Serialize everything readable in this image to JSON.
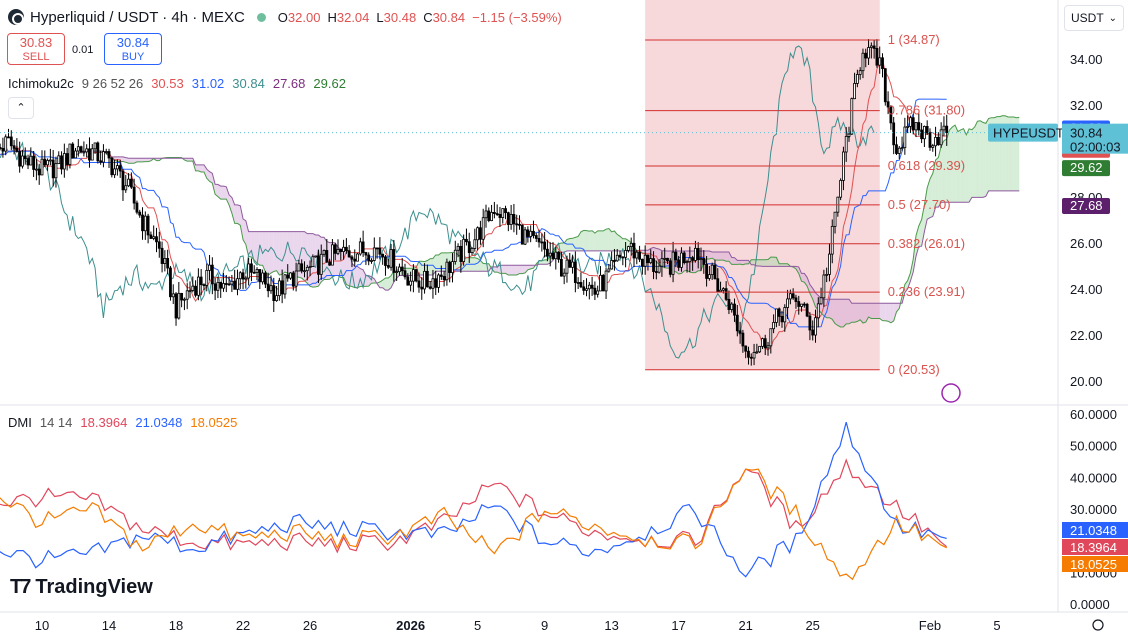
{
  "header": {
    "symbol": "Hyperliquid / USDT · 4h · MEXC",
    "ohlc": [
      {
        "k": "O",
        "v": "32.00"
      },
      {
        "k": "H",
        "v": "32.04"
      },
      {
        "k": "L",
        "v": "30.48"
      },
      {
        "k": "C",
        "v": "30.84"
      },
      {
        "k": "",
        "v": "−1.15 (−3.59%)"
      }
    ]
  },
  "trade": {
    "sell_price": "30.83",
    "sell_label": "SELL",
    "spread": "0.01",
    "buy_price": "30.84",
    "buy_label": "BUY"
  },
  "currency_selector": "USDT",
  "ichimoku_legend": {
    "name": "Ichimoku2c",
    "params": "9 26 52 26",
    "values": [
      "30.53",
      "31.02",
      "30.84",
      "27.68",
      "29.62"
    ],
    "colors": [
      "#e05252",
      "#2962ff",
      "#3d8f8f",
      "#7b2f7f",
      "#2e7d32"
    ]
  },
  "dmi_legend": {
    "name": "DMI",
    "params": "14 14",
    "values": [
      "18.3964",
      "21.0348",
      "18.0525"
    ],
    "colors": [
      "#e0475b",
      "#2962ff",
      "#f57c00"
    ]
  },
  "watermark": "TradingView",
  "colors": {
    "up": "#ffffff",
    "down": "#000000",
    "candle_border": "#000000",
    "tenkan": "#e05252",
    "kijun": "#2962ff",
    "chikou": "#3d8f8f",
    "span_a": "#4a9a4a",
    "span_b": "#8e5a9e",
    "fib_line": "#d32f2f",
    "fib_zone": "#f4c7cc",
    "last_price_label": "#5ec1d6"
  },
  "chart_data": [
    {
      "type": "candlestick",
      "title": "Hyperliquid / USDT · 4h · MEXC",
      "ylim": [
        19.5,
        35.5
      ],
      "y_ticks": [
        "34.00",
        "32.00",
        "28.00",
        "26.00",
        "24.00",
        "22.00",
        "20.00"
      ],
      "x_ticks": [
        "10",
        "14",
        "18",
        "22",
        "26",
        "2026",
        "5",
        "9",
        "13",
        "17",
        "21",
        "25",
        "Feb",
        "5"
      ],
      "x_tick_dates": [
        "2025-12-10",
        "2025-12-14",
        "2025-12-18",
        "2025-12-22",
        "2025-12-26",
        "2026-01-01",
        "2026-01-05",
        "2026-01-09",
        "2026-01-13",
        "2026-01-17",
        "2026-01-21",
        "2026-01-25",
        "2026-02-01",
        "2026-02-05"
      ],
      "series": {
        "close_path_dates": [
          "2025-12-07",
          "2025-12-08",
          "2025-12-09",
          "2025-12-10",
          "2025-12-11",
          "2025-12-12",
          "2025-12-13",
          "2025-12-14",
          "2025-12-15",
          "2025-12-16",
          "2025-12-17",
          "2025-12-18",
          "2025-12-19",
          "2025-12-20",
          "2025-12-21",
          "2025-12-22",
          "2025-12-23",
          "2025-12-24",
          "2025-12-25",
          "2025-12-26",
          "2025-12-27",
          "2025-12-28",
          "2025-12-29",
          "2025-12-30",
          "2025-12-31",
          "2026-01-01",
          "2026-01-02",
          "2026-01-03",
          "2026-01-04",
          "2026-01-05",
          "2026-01-06",
          "2026-01-07",
          "2026-01-08",
          "2026-01-09",
          "2026-01-10",
          "2026-01-11",
          "2026-01-12",
          "2026-01-13",
          "2026-01-14",
          "2026-01-15",
          "2026-01-16",
          "2026-01-17",
          "2026-01-18",
          "2026-01-19",
          "2026-01-20",
          "2026-01-21",
          "2026-01-22",
          "2026-01-23",
          "2026-01-24",
          "2026-01-25",
          "2026-01-26",
          "2026-01-27",
          "2026-01-28",
          "2026-01-29",
          "2026-01-30",
          "2026-01-31",
          "2026-02-01",
          "2026-02-02"
        ],
        "close_path": [
          30.0,
          30.4,
          29.6,
          29.2,
          29.4,
          30.2,
          30.0,
          29.6,
          28.6,
          27.0,
          25.8,
          23.2,
          24.2,
          24.6,
          24.0,
          24.8,
          24.5,
          23.9,
          24.6,
          24.9,
          25.4,
          25.6,
          25.7,
          25.8,
          25.2,
          24.5,
          24.3,
          24.8,
          25.6,
          26.4,
          27.6,
          27.0,
          26.2,
          25.7,
          25.0,
          24.7,
          23.9,
          24.8,
          25.9,
          25.2,
          24.9,
          25.3,
          25.8,
          24.6,
          23.5,
          21.4,
          21.6,
          22.9,
          23.7,
          22.3,
          25.5,
          30.5,
          34.6,
          33.8,
          30.1,
          31.2,
          30.6,
          30.84
        ]
      },
      "fibonacci": [
        {
          "label": "1 (34.87)",
          "value": 34.87
        },
        {
          "label": "0.786 (31.80)",
          "value": 31.8
        },
        {
          "label": "0.618 (29.39)",
          "value": 29.39
        },
        {
          "label": "0.5 (27.70)",
          "value": 27.7
        },
        {
          "label": "0.382 (26.01)",
          "value": 26.01
        },
        {
          "label": "0.236 (23.91)",
          "value": 23.91
        },
        {
          "label": "0 (20.53)",
          "value": 20.53
        }
      ],
      "fib_range_dates": [
        "2026-01-15",
        "2026-01-29"
      ],
      "price_labels": [
        {
          "label": "31.02",
          "value": 31.02,
          "color": "#2962ff"
        },
        {
          "label": "30.84",
          "value": 30.7,
          "color": "#2b6e6e"
        },
        {
          "label": "30.53",
          "value": 30.1,
          "color": "#e05252"
        },
        {
          "label": "29.62",
          "value": 29.3,
          "color": "#2e7d32"
        },
        {
          "label": "27.68",
          "value": 27.65,
          "color": "#5b1f6b"
        }
      ],
      "last_price": {
        "symbol": "HYPEUSDT",
        "price": "30.84",
        "countdown": "02:00:03",
        "value": 30.84
      }
    },
    {
      "type": "line",
      "title": "DMI 14 14",
      "ylim": [
        0,
        60
      ],
      "y_ticks": [
        "60.0000",
        "50.0000",
        "40.0000",
        "30.0000",
        "10.0000",
        "0.0000"
      ],
      "x_dates": [
        "2025-12-07",
        "2025-12-10",
        "2025-12-13",
        "2025-12-16",
        "2025-12-19",
        "2025-12-22",
        "2025-12-25",
        "2025-12-28",
        "2025-12-31",
        "2026-01-03",
        "2026-01-06",
        "2026-01-09",
        "2026-01-12",
        "2026-01-15",
        "2026-01-18",
        "2026-01-21",
        "2026-01-24",
        "2026-01-27",
        "2026-01-30",
        "2026-02-02"
      ],
      "series": [
        {
          "color": "#e0475b",
          "values": [
            32,
            34,
            33,
            24,
            20,
            19,
            20,
            19,
            20,
            26,
            38,
            29,
            23,
            21,
            20,
            44,
            24,
            44,
            31,
            18.3964
          ]
        },
        {
          "color": "#2962ff",
          "values": [
            18,
            14,
            16,
            22,
            18,
            22,
            26,
            24,
            23,
            22,
            31,
            20,
            17,
            23,
            30,
            10,
            20,
            56,
            25,
            21.0348
          ]
        },
        {
          "color": "#f57c00",
          "values": [
            36,
            26,
            30,
            18,
            26,
            21,
            23,
            20,
            22,
            28,
            16,
            30,
            25,
            21,
            19,
            44,
            29,
            8,
            26,
            18.0525
          ]
        }
      ],
      "price_labels": [
        {
          "label": "21.0348",
          "value": 21.0348,
          "color": "#2962ff"
        },
        {
          "label": "18.3964",
          "value": 18.3964,
          "color": "#e0475b"
        },
        {
          "label": "18.0525",
          "value": 18.0525,
          "color": "#f57c00"
        }
      ]
    }
  ]
}
